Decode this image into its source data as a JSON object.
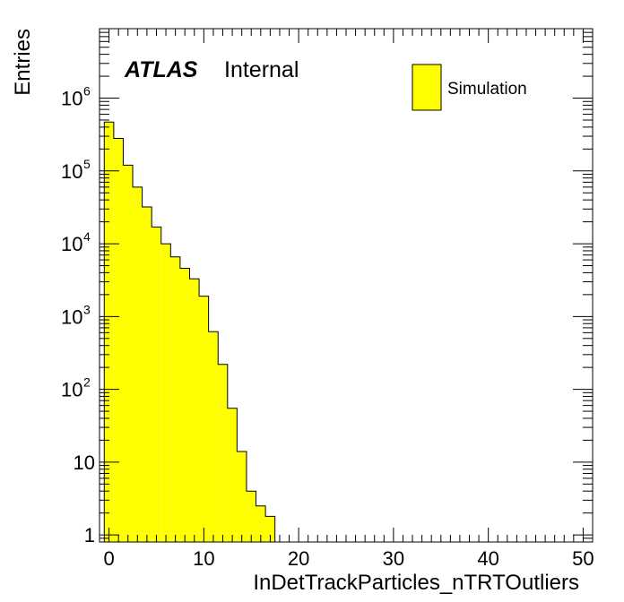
{
  "chart_data": {
    "type": "bar",
    "histogram": true,
    "xlabel": "InDetTrackParticles_nTRTOutliers",
    "ylabel": "Entries",
    "xlim": [
      -1,
      51
    ],
    "ylim": [
      0.8,
      9000000
    ],
    "log_y": true,
    "x_ticks": [
      0,
      10,
      20,
      30,
      40,
      50
    ],
    "x_tick_labels": [
      "0",
      "10",
      "20",
      "30",
      "40",
      "50"
    ],
    "y_tick_labels": [
      {
        "value": 1,
        "base": "1",
        "exp": ""
      },
      {
        "value": 10,
        "base": "10",
        "exp": ""
      },
      {
        "value": 100,
        "base": "10",
        "exp": "2"
      },
      {
        "value": 1000,
        "base": "10",
        "exp": "3"
      },
      {
        "value": 10000,
        "base": "10",
        "exp": "4"
      },
      {
        "value": 100000,
        "base": "10",
        "exp": "5"
      },
      {
        "value": 1000000,
        "base": "10",
        "exp": "6"
      }
    ],
    "bin_width": 1,
    "bins": [
      {
        "low": -0.5,
        "value": 470000
      },
      {
        "low": 0.5,
        "value": 280000
      },
      {
        "low": 1.5,
        "value": 120000
      },
      {
        "low": 2.5,
        "value": 60000
      },
      {
        "low": 3.5,
        "value": 32000
      },
      {
        "low": 4.5,
        "value": 17000
      },
      {
        "low": 5.5,
        "value": 10000
      },
      {
        "low": 6.5,
        "value": 6600
      },
      {
        "low": 7.5,
        "value": 4600
      },
      {
        "low": 8.5,
        "value": 3300
      },
      {
        "low": 9.5,
        "value": 1900
      },
      {
        "low": 10.5,
        "value": 620
      },
      {
        "low": 11.5,
        "value": 220
      },
      {
        "low": 12.5,
        "value": 55
      },
      {
        "low": 13.5,
        "value": 14
      },
      {
        "low": 14.5,
        "value": 4
      },
      {
        "low": 15.5,
        "value": 2.5
      },
      {
        "low": 16.5,
        "value": 1.8
      }
    ],
    "series": [
      {
        "name": "Simulation",
        "fill": "#ffff00",
        "line": "#000000"
      }
    ],
    "legend_placement": "top-right",
    "grid": false
  },
  "labels": {
    "atlas": "ATLAS",
    "internal": "Internal",
    "legend": "Simulation"
  }
}
